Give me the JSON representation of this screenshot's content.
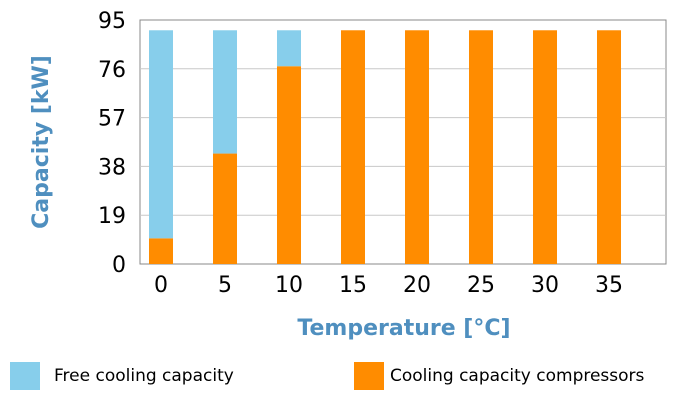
{
  "chart_data": {
    "type": "bar",
    "stacked": true,
    "categories": [
      "0",
      "5",
      "10",
      "15",
      "20",
      "25",
      "30",
      "35"
    ],
    "series": [
      {
        "name": "Cooling capacity compressors",
        "color": "#ff8c00",
        "values": [
          10,
          43,
          77,
          91,
          91,
          91,
          91,
          91
        ]
      },
      {
        "name": "Free cooling capacity",
        "color": "#87ceeb",
        "values": [
          81,
          48,
          14,
          0,
          0,
          0,
          0,
          0
        ]
      }
    ],
    "xlabel": "Temperature [°C]",
    "ylabel": "Capacity [kW]",
    "yticks": [
      "0",
      "19",
      "38",
      "57",
      "76",
      "95"
    ],
    "ylim": [
      0,
      95
    ],
    "grid": true,
    "legend_position": "bottom"
  },
  "legend": {
    "free_cooling": "Free cooling capacity",
    "compressors": "Cooling capacity compressors"
  }
}
